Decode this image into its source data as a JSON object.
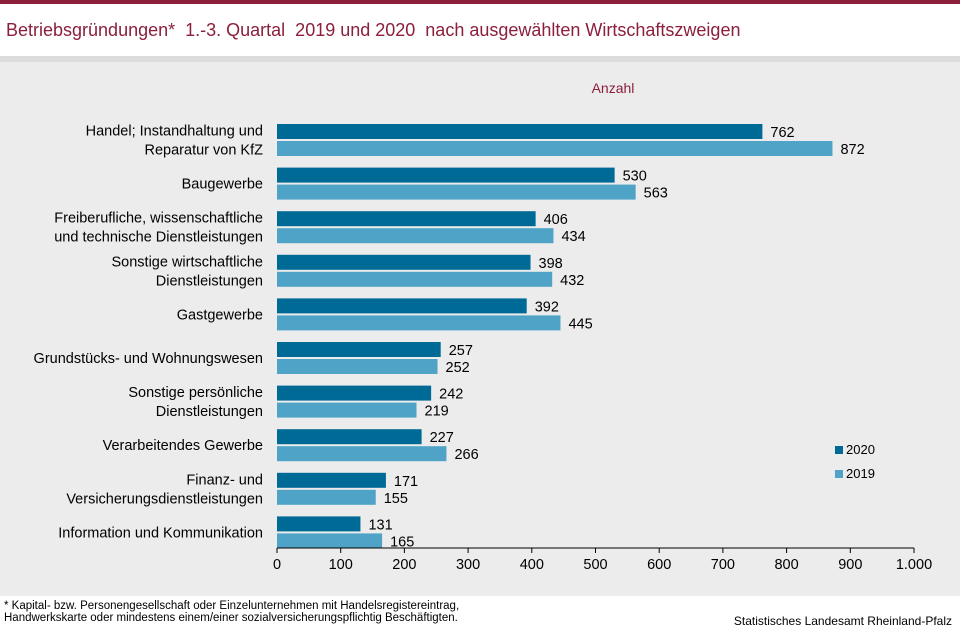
{
  "header": {
    "title": "Betriebsgründungen*  1.-3. Quartal  2019 und 2020  nach ausgewählten Wirtschaftszweigen"
  },
  "chart_data": {
    "type": "bar",
    "orientation": "horizontal",
    "title": "Betriebsgründungen* 1.-3. Quartal 2019 und 2020 nach ausgewählten Wirtschaftszweigen",
    "unit_label": "Anzahl",
    "categories": [
      "Handel; Instandhaltung und\nReparatur von KfZ",
      "Baugewerbe",
      "Freiberufliche, wissenschaftliche\nund technische Dienstleistungen",
      "Sonstige wirtschaftliche\nDienstleistungen",
      "Gastgewerbe",
      "Grundstücks- und Wohnungswesen",
      "Sonstige persönliche\nDienstleistungen",
      "Verarbeitendes Gewerbe",
      "Finanz- und\nVersicherungsdienstleistungen",
      "Information und Kommunikation"
    ],
    "series": [
      {
        "name": "2020",
        "color": "#006a96",
        "values": [
          762,
          530,
          406,
          398,
          392,
          257,
          242,
          227,
          171,
          131
        ]
      },
      {
        "name": "2019",
        "color": "#4ea3c6",
        "values": [
          872,
          563,
          434,
          432,
          445,
          252,
          219,
          266,
          155,
          165
        ]
      }
    ],
    "xlim": [
      0,
      1000
    ],
    "xticks": [
      0,
      100,
      200,
      300,
      400,
      500,
      600,
      700,
      800,
      900,
      1000
    ],
    "xtick_labels": [
      "0",
      "100",
      "200",
      "300",
      "400",
      "500",
      "600",
      "700",
      "800",
      "900",
      "1.000"
    ],
    "legend_position": "right",
    "grid": false
  },
  "footer": {
    "footnote": "* Kapital- bzw. Personengesellschaft  oder Einzelunternehmen  mit  Handelsregistereintrag,\nHandwerkskarte  oder mindestens  einem/einer  sozialversicherungspflichtig  Beschäftigten.",
    "source": "Statistisches Landesamt Rheinland-Pfalz"
  }
}
